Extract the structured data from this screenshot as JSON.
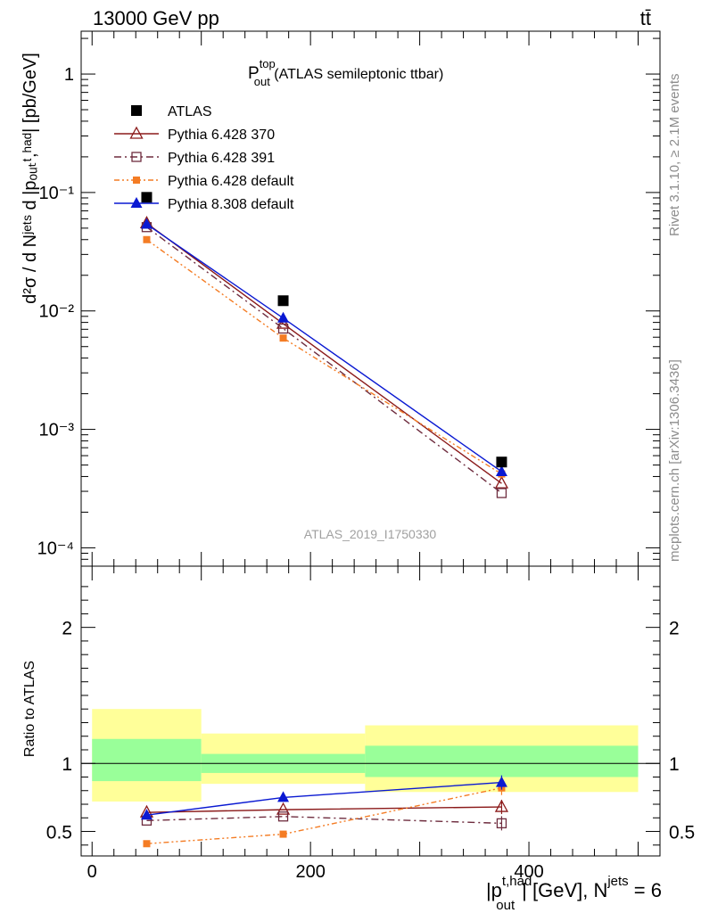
{
  "header": {
    "left_text": "13000 GeV pp",
    "right_text": "tt̄"
  },
  "side_labels": {
    "rivet": "Rivet 3.1.10, ≥ 2.1M events",
    "mcplots": "mcplots.cern.ch [arXiv:1306.3436]"
  },
  "colors": {
    "atlas": "#000000",
    "pythia6_370": "#8b1a1a",
    "pythia6_391": "#6e2c3e",
    "pythia6_default": "#f47c24",
    "pythia8_default": "#0a19d2",
    "band_inner": "#99ff99",
    "band_outer": "#ffff99"
  },
  "chart_data": [
    {
      "type": "line",
      "title_main": "P",
      "title_sup": "top",
      "title_sub": "out",
      "title_rest": " (ATLAS semileptonic ttbar)",
      "watermark": "ATLAS_2019_I1750330",
      "ylabel": "d²σ / d Nʲᵉᵗˢ d |pₒᵤₜᵗ,ʰᵃᵈ| [pb/GeV]",
      "yscale": "log",
      "ylim": [
        7e-05,
        2.3
      ],
      "xlim": [
        -10,
        520
      ],
      "y_ticks": [
        {
          "value": 1,
          "label": "1"
        },
        {
          "value": 0.1,
          "label": "10⁻¹"
        },
        {
          "value": 0.01,
          "label": "10⁻²"
        },
        {
          "value": 0.001,
          "label": "10⁻³"
        },
        {
          "value": 0.0001,
          "label": "10⁻⁴"
        }
      ],
      "legend_position": "top-left",
      "x": [
        50,
        175,
        375
      ],
      "series": [
        {
          "name": "ATLAS",
          "key": "atlas",
          "values": [
            0.091,
            0.0122,
            0.00053
          ],
          "marker": "square-filled",
          "line": "none"
        },
        {
          "name": "Pythia 6.428 370",
          "key": "pythia6_370",
          "values": [
            0.055,
            0.0078,
            0.00035
          ],
          "marker": "triangle-open",
          "line": "solid"
        },
        {
          "name": "Pythia 6.428 391",
          "key": "pythia6_391",
          "values": [
            0.051,
            0.0071,
            0.00029
          ],
          "marker": "square-open",
          "line": "dashdot"
        },
        {
          "name": "Pythia 6.428 default",
          "key": "pythia6_default",
          "values": [
            0.04,
            0.0059,
            0.00042
          ],
          "marker": "square-filled-small",
          "line": "dashdotdot"
        },
        {
          "name": "Pythia 8.308 default",
          "key": "pythia8_default",
          "values": [
            0.054,
            0.0087,
            0.00044
          ],
          "marker": "triangle-filled",
          "line": "solid"
        }
      ]
    },
    {
      "type": "line",
      "ylabel": "Ratio to ATLAS",
      "xlabel_main": "|p",
      "xlabel_sup": "t,had",
      "xlabel_sub": "out",
      "xlabel_rest": "| [GeV], N",
      "xlabel_sup2": "jets",
      "xlabel_end": " = 6",
      "ylim": [
        0.32,
        2.45
      ],
      "xlim": [
        -10,
        520
      ],
      "x_ticks": [
        0,
        200,
        400
      ],
      "y_ticks": [
        0.5,
        1,
        2
      ],
      "reference_line": 1,
      "bands": [
        {
          "x_range": [
            0,
            100
          ],
          "inner": [
            0.87,
            1.18
          ],
          "outer": [
            0.72,
            1.4
          ]
        },
        {
          "x_range": [
            100,
            250
          ],
          "inner": [
            0.93,
            1.07
          ],
          "outer": [
            0.85,
            1.22
          ]
        },
        {
          "x_range": [
            250,
            500
          ],
          "inner": [
            0.9,
            1.13
          ],
          "outer": [
            0.79,
            1.28
          ]
        }
      ],
      "x": [
        50,
        175,
        375
      ],
      "series": [
        {
          "name": "Pythia 6.428 370",
          "key": "pythia6_370",
          "values": [
            0.64,
            0.66,
            0.68
          ],
          "marker": "triangle-open",
          "line": "solid"
        },
        {
          "name": "Pythia 6.428 391",
          "key": "pythia6_391",
          "values": [
            0.58,
            0.61,
            0.56
          ],
          "marker": "square-open",
          "line": "dashdot"
        },
        {
          "name": "Pythia 6.428 default",
          "key": "pythia6_default",
          "values": [
            0.41,
            0.48,
            0.82
          ],
          "marker": "square-filled-small",
          "line": "dashdotdot"
        },
        {
          "name": "Pythia 8.308 default",
          "key": "pythia8_default",
          "values": [
            0.62,
            0.75,
            0.86
          ],
          "marker": "triangle-filled",
          "line": "solid"
        }
      ]
    }
  ]
}
